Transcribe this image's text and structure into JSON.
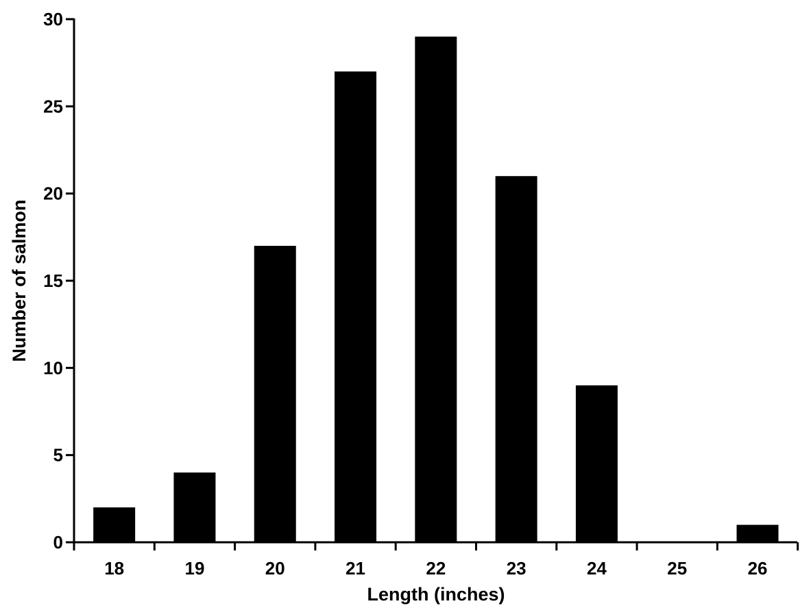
{
  "chart_data": {
    "type": "bar",
    "title": "",
    "xlabel": "Length (inches)",
    "ylabel": "Number of salmon",
    "categories": [
      "18",
      "19",
      "20",
      "21",
      "22",
      "23",
      "24",
      "25",
      "26"
    ],
    "values": [
      2,
      4,
      17,
      27,
      29,
      21,
      9,
      0,
      1
    ],
    "ylim": [
      0,
      30
    ],
    "yticks": [
      "0",
      "5",
      "10",
      "15",
      "20",
      "25",
      "30"
    ],
    "grid": false,
    "bar_color": "#000000"
  }
}
